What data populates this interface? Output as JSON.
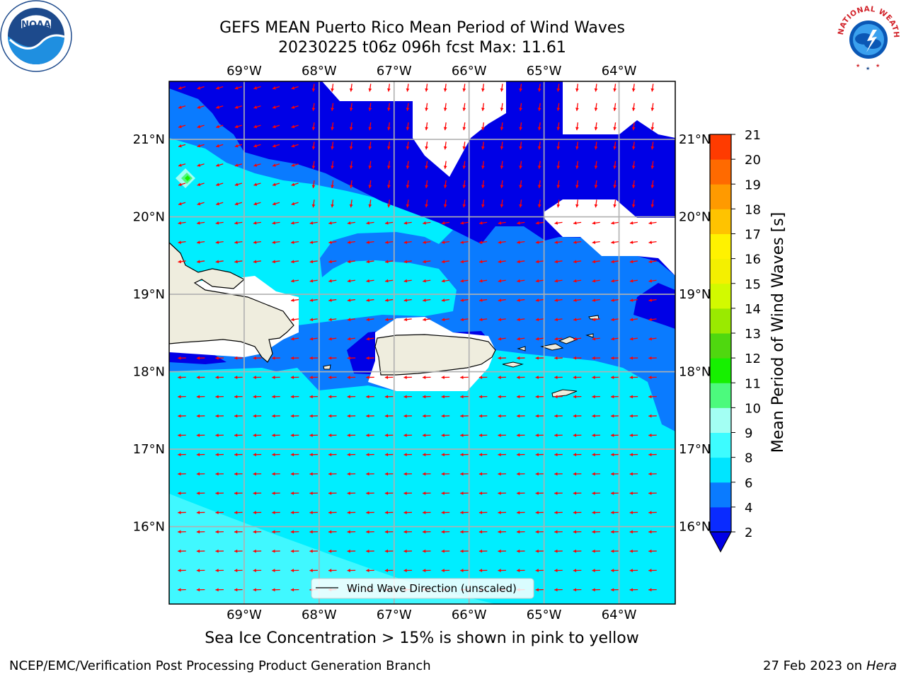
{
  "title_line1": "GEFS MEAN Puerto Rico Mean Period of Wind Waves",
  "title_line2": "20230225 t06z 096h fcst   Max: 11.61",
  "subtitle": "Sea Ice Concentration > 15% is shown in pink to yellow",
  "footer_left": "NCEP/EMC/Verification Post Processing Product Generation Branch",
  "footer_right_date": "27 Feb 2023 on",
  "footer_right_host": "Hera",
  "legend_label": "Wind Wave Direction (unscaled)",
  "colorbar": {
    "label": "Mean Period of Wind Waves [s]",
    "ticks": [
      "2",
      "4",
      "6",
      "8",
      "9",
      "10",
      "11",
      "12",
      "13",
      "14",
      "15",
      "16",
      "17",
      "18",
      "19",
      "20",
      "21"
    ],
    "colors": [
      "#0a2bff",
      "#0a7bff",
      "#00e5ff",
      "#3dfcff",
      "#a3fff3",
      "#4cfa7d",
      "#16f000",
      "#4fd80f",
      "#9aea00",
      "#d2fa00",
      "#f4f000",
      "#fff200",
      "#ffc300",
      "#ff9a00",
      "#ff6a00",
      "#ff3b00",
      "#ff0000"
    ],
    "under_color": "#0000e6"
  },
  "map": {
    "lon_labels": [
      "69°W",
      "68°W",
      "67°W",
      "66°W",
      "65°W",
      "64°W"
    ],
    "lat_labels": [
      "21°N",
      "20°N",
      "19°N",
      "18°N",
      "17°N",
      "16°N"
    ],
    "lon_values": [
      -69,
      -68,
      -67,
      -66,
      -65,
      -64
    ],
    "lat_values": [
      21,
      20,
      19,
      18,
      17,
      16
    ],
    "lon_range": [
      -70,
      -63.25
    ],
    "lat_range": [
      15,
      21.75
    ],
    "colors": {
      "deep": "#0000e6",
      "mid": "#0a7bff",
      "light": "#00eeff",
      "pale": "#40f8ff",
      "land": "#efedde",
      "arrow": "#ff0000",
      "grid": "#b0b0b0"
    }
  },
  "logos": {
    "noaa": "NOAA",
    "nws": "NATIONAL WEATHER SERVICE"
  }
}
